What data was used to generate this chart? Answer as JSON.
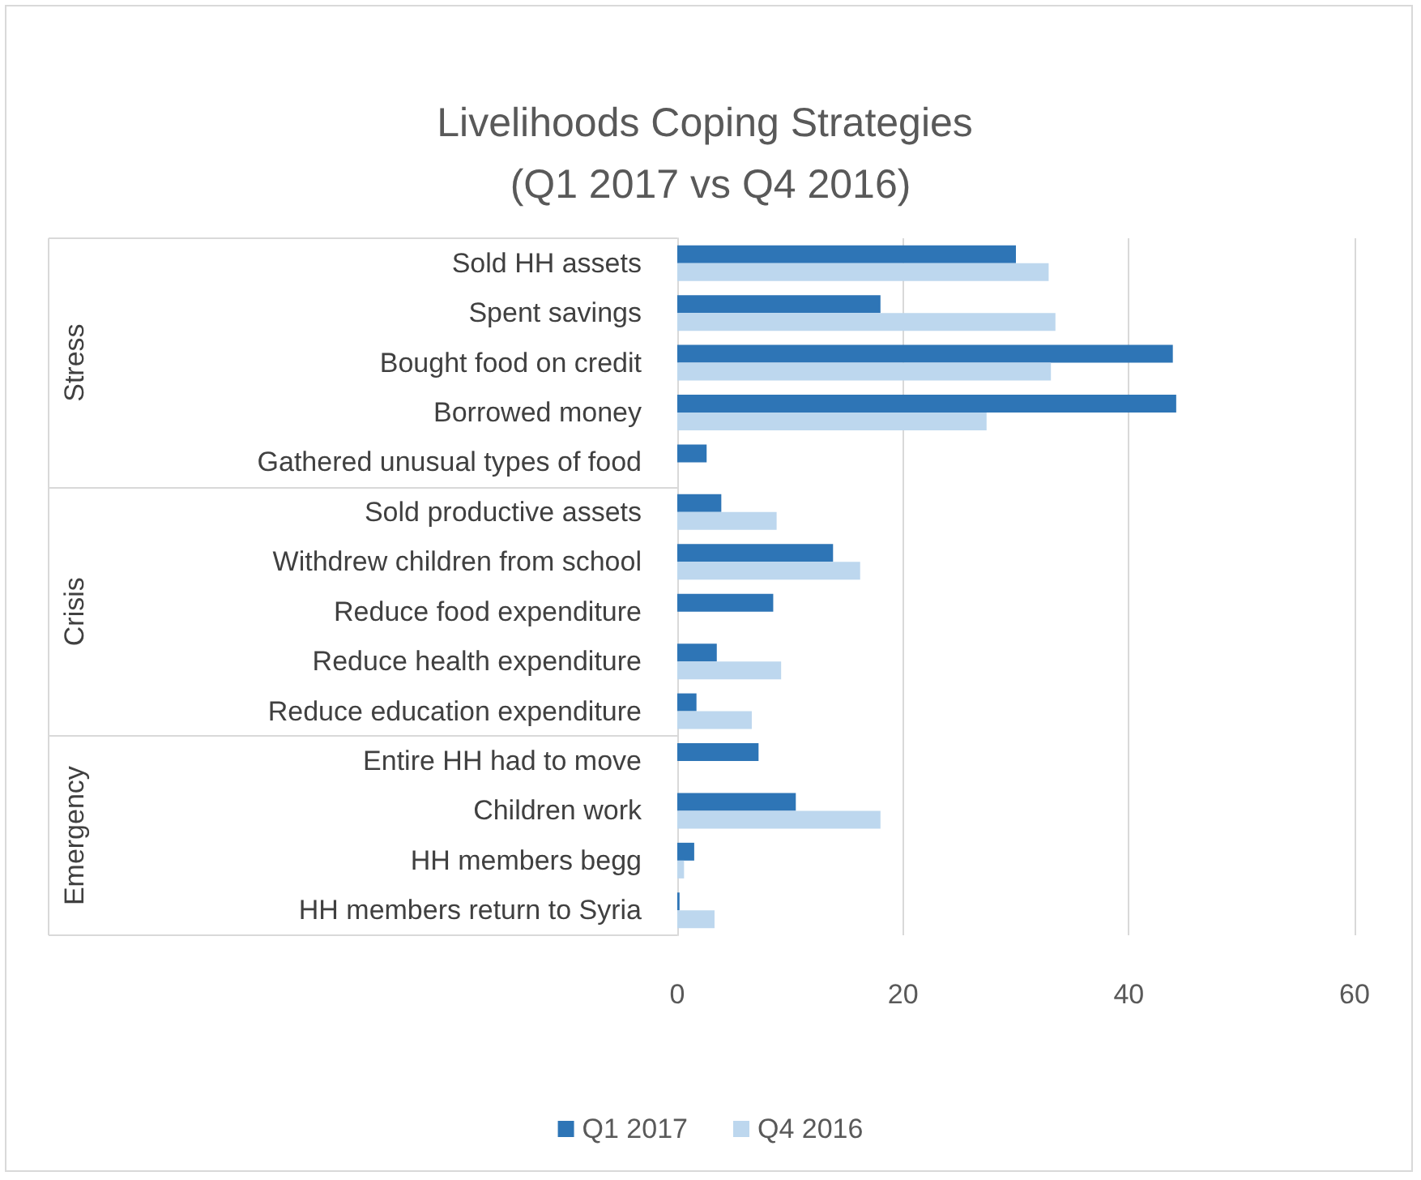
{
  "chart_data": {
    "type": "bar",
    "orientation": "horizontal",
    "title": "Livelihoods Coping Strategies (Q1 2017 vs Q4 2016)",
    "categories": [
      "Sold HH assets",
      "Spent savings",
      "Bought food on credit",
      "Borrowed money",
      "Gathered unusual types of food",
      "Sold productive assets",
      "Withdrew children from school",
      "Reduce food expenditure",
      "Reduce health expenditure",
      "Reduce education expenditure",
      "Entire HH had to move",
      "Children work",
      "HH members begg",
      "HH members return to Syria"
    ],
    "series": [
      {
        "name": "Q1 2017",
        "color": "#2e75b6",
        "values": [
          30.0,
          18.0,
          43.9,
          44.2,
          2.6,
          3.9,
          13.8,
          8.5,
          3.5,
          1.7,
          7.2,
          10.5,
          1.5,
          0.2
        ]
      },
      {
        "name": "Q4 2016",
        "color": "#bdd7ee",
        "values": [
          32.9,
          33.5,
          33.1,
          27.4,
          null,
          8.8,
          16.2,
          null,
          9.2,
          6.6,
          null,
          18.0,
          0.6,
          3.3
        ]
      }
    ],
    "annotations": [
      "Stress",
      "Crisis",
      "Emergency"
    ],
    "xlim": [
      0,
      60
    ],
    "xticks": [
      0,
      20,
      40,
      60
    ],
    "grid": "x",
    "legend": "bottom"
  }
}
